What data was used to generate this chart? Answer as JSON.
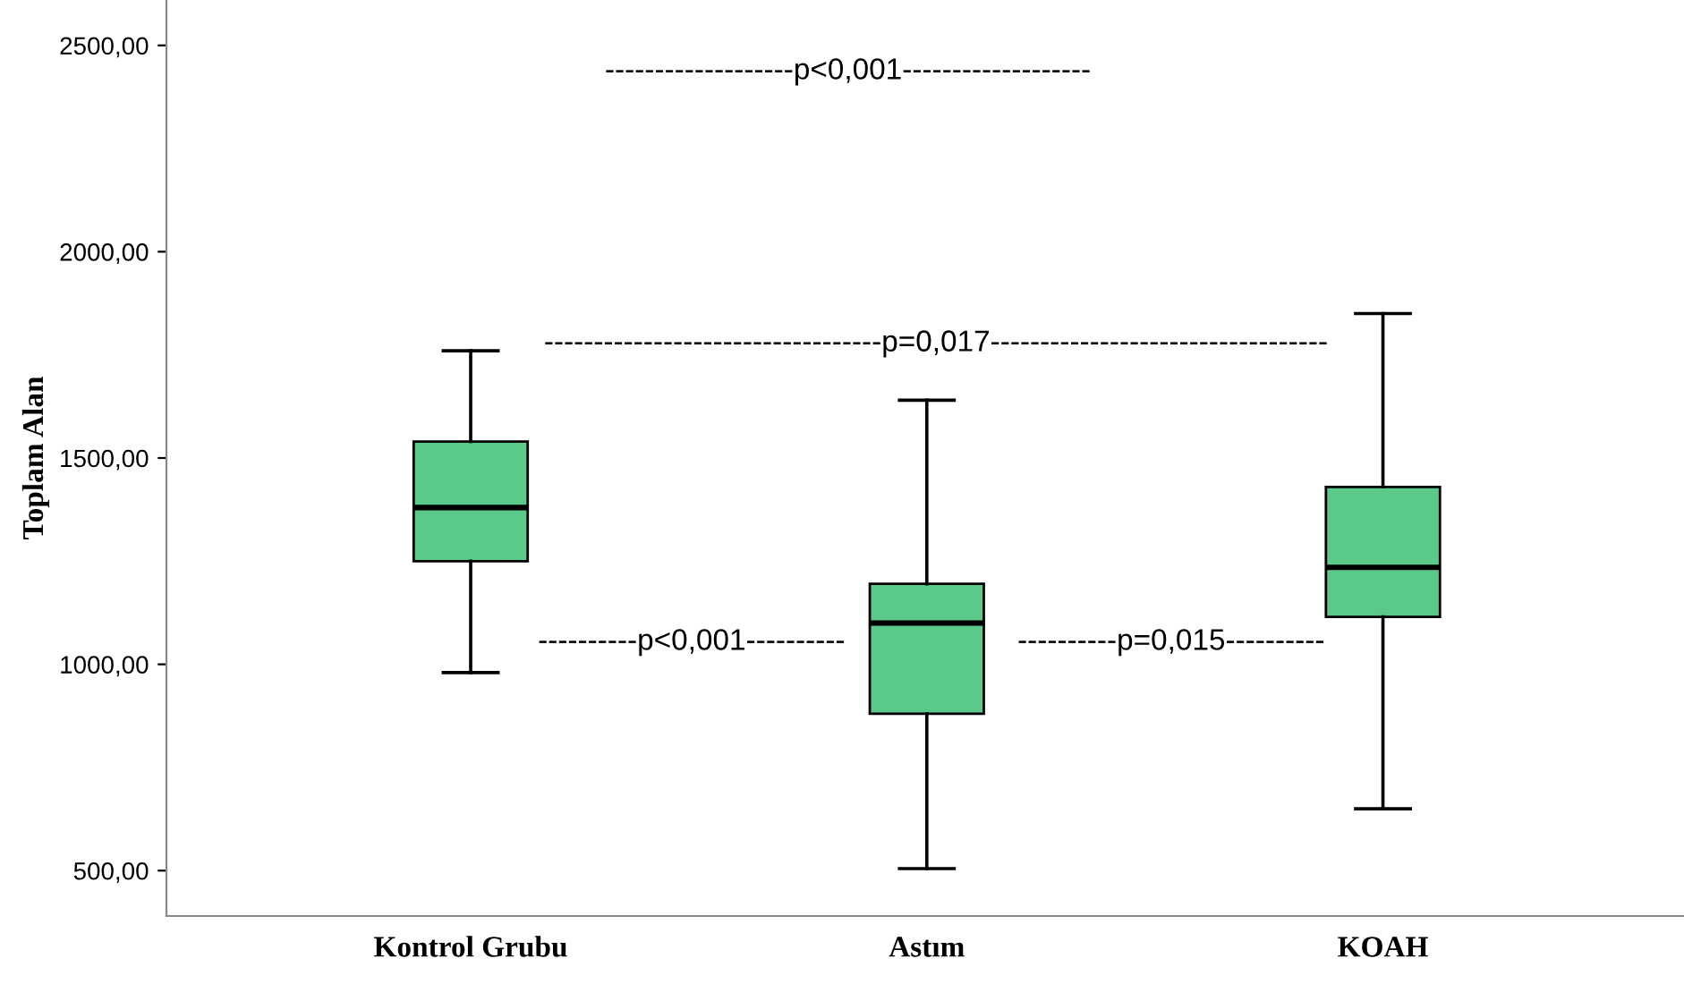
{
  "chart_data": {
    "type": "box",
    "ylabel": "Toplam Alan",
    "categories": [
      "Kontrol Grubu",
      "Astım",
      "KOAH"
    ],
    "boxes": [
      {
        "low": 980,
        "q1": 1250,
        "median": 1380,
        "q3": 1540,
        "high": 1760
      },
      {
        "low": 505,
        "q1": 880,
        "median": 1100,
        "q3": 1195,
        "high": 1640
      },
      {
        "low": 650,
        "q1": 1115,
        "median": 1235,
        "q3": 1430,
        "high": 1850
      }
    ],
    "color": "#5bc98a",
    "ylim": [
      390,
      2610
    ],
    "yticks": [
      {
        "value": 500,
        "label": "500,00"
      },
      {
        "value": 1000,
        "label": "1000,00"
      },
      {
        "value": 1500,
        "label": "1500,00"
      },
      {
        "value": 2000,
        "label": "2000,00"
      },
      {
        "value": 2500,
        "label": "2500,00"
      }
    ],
    "grid": false,
    "annotations": [
      "-------------------p<0,001-------------------",
      "----------------------------------p=0,017----------------------------------",
      "----------p<0,001----------",
      "----------p=0,015----------"
    ]
  }
}
